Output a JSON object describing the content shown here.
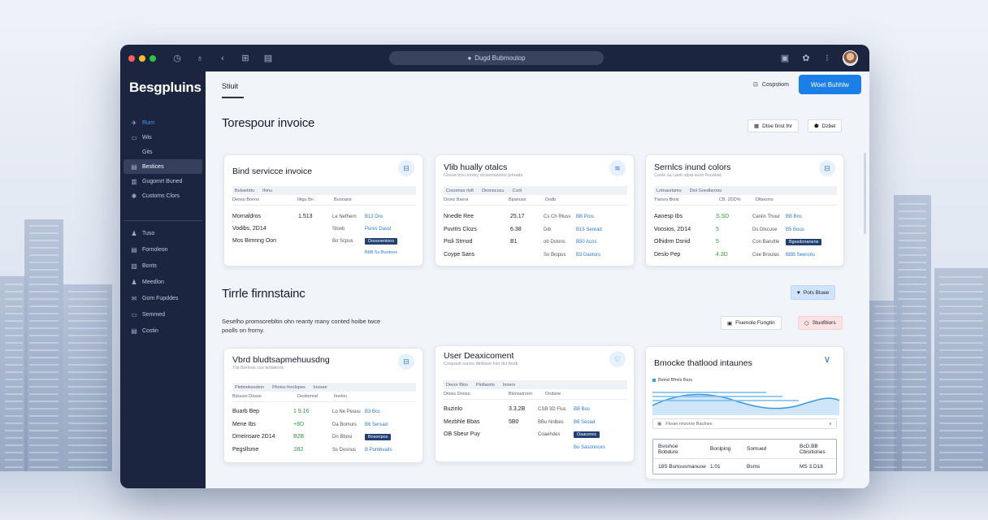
{
  "browser": {
    "url": "Dugd Bubmoutop",
    "traffic_colors": [
      "#ff5f57",
      "#febc2e",
      "#28c840"
    ]
  },
  "sidebar": {
    "brand": "Besgpluins",
    "items": [
      {
        "label": "Rurn",
        "icon": "rocket-icon",
        "active": true
      },
      {
        "label": "Wis",
        "icon": "box-icon"
      },
      {
        "label": "Gits",
        "icon": ""
      },
      {
        "label": "Bestices",
        "icon": "doc-icon",
        "selected": true
      },
      {
        "label": "Gugomrt Buned",
        "icon": "wallet-icon"
      },
      {
        "label": "Customs Clors",
        "icon": "gear-icon"
      },
      {
        "label": "Tuso",
        "icon": "people-icon"
      },
      {
        "label": "Fornoleon",
        "icon": "doc-icon"
      },
      {
        "label": "Bonts",
        "icon": "image-icon"
      },
      {
        "label": "Meedlon",
        "icon": "people-icon"
      },
      {
        "label": "Gom Fupddes",
        "icon": "mail-icon"
      },
      {
        "label": "Semmed",
        "icon": "box-icon"
      },
      {
        "label": "Costin",
        "icon": "doc-icon"
      }
    ]
  },
  "header": {
    "crumb": "Stiuit",
    "ghost_label": "Cospstiom",
    "primary_label": "Woet Buhhlw"
  },
  "section1": {
    "title": "Torespour invoice",
    "chip_a": "Dtoe finst Ihr",
    "chip_b": "Dzbel"
  },
  "section2": {
    "title": "Tirrle firnnstainc",
    "sub": "Seselho promsorebltin ohn reanty many conted hoibe twce poolls on fromy.",
    "chip_top": "Pots Bluee",
    "chip_a": "Fluenole Fungtin",
    "chip_b": "Stuofitiors"
  },
  "cards": [
    {
      "title": "Bind servicce invoice",
      "sub": "",
      "icon": "inbox-icon",
      "thead": [
        "Bulwetirtu",
        "Ihinu"
      ],
      "cols": [
        "Deosu Bonns",
        "Ilitgu Bn",
        "Buooaris"
      ],
      "rows": [
        {
          "name": "Mornaldros",
          "amt": "1.513",
          "green": false,
          "st": "Le Nefhern",
          "lnk": "B13 Dro"
        },
        {
          "name": "Vodibs, 2D14",
          "amt": "",
          "green": false,
          "st": "Stoxb",
          "lnk": "Pures Dassl"
        },
        {
          "name": "Mos Bimnng Oon",
          "amt": "",
          "green": false,
          "st": "Bo Scpus",
          "tag": "Dosonenions"
        }
      ],
      "foot": "B6B Ss Buotoos"
    },
    {
      "title": "Vlib hually otalcs",
      "sub": "Cosoe trou oiomy vlcsentasionz prkoats",
      "icon": "lines-icon",
      "thead": [
        "Cosomsa rloft",
        "Desnocucu",
        "Curit"
      ],
      "cols": [
        "Drosc Bsera",
        "Bpanuss",
        "Dodb"
      ],
      "rows": [
        {
          "name": "Nnedle Ree",
          "amt": "25.17",
          "green": false,
          "st": "Cs Ch Rluss",
          "lnk": "BB Pros"
        },
        {
          "name": "Puvitrs Clozs",
          "amt": "6.38",
          "green": false,
          "st": "Dib",
          "lnk": "B15 Senrad"
        },
        {
          "name": "Pisli Strnod",
          "amt": "B1",
          "green": false,
          "st": "ob Dslons",
          "lnk": "B50 Acos"
        },
        {
          "name": "Coype Sans",
          "amt": "",
          "green": false,
          "st": "So Biopus",
          "lnk": "B3 Daoturs"
        }
      ],
      "foot": ""
    },
    {
      "title": "Sernlcs inund colors",
      "sub": "Conle sa caob sipal soun finuatad",
      "icon": "inbox-icon",
      "thead": [
        "Lotnaurlamu",
        "Diol Goedlaroou"
      ],
      "cols": [
        "Tlarurs Biois",
        "CB. 2DD%",
        "Dlbeoms"
      ],
      "rows": [
        {
          "name": "Aaoesp Ibs",
          "amt": "S.SD",
          "green": true,
          "st": "Canlin Thoul",
          "lnk": "BB Bns"
        },
        {
          "name": "Voosios, 2D14",
          "amt": "5",
          "green": true,
          "st": "Ds Dlxcuse",
          "lnk": "B5 Bous"
        },
        {
          "name": "Olhidrm Dsnid",
          "amt": "5",
          "green": true,
          "st": "Con Baruttle",
          "tag": "Bgssdonanens"
        },
        {
          "name": "Deslo Pep",
          "amt": "4.3D",
          "green": true,
          "st": "Cee Broulas",
          "lnk": "BBB Seerons"
        }
      ],
      "foot": ""
    },
    {
      "title": "Vbrd bludtsapmehuusdng",
      "sub": "Tlis Borlnos cso tiotlalions",
      "icon": "inbox-icon",
      "thead": [
        "Plebnokesdion",
        "Pboiss forolopes",
        "Inooee"
      ],
      "cols": [
        "Bdouso Dosse",
        "Desbonnd",
        "Iloolsn"
      ],
      "rows": [
        {
          "name": "Buarb Bep",
          "amt": "1 9.16",
          "green": true,
          "st": "Lo Ne Pesuu",
          "lnk": "B3 Bcc"
        },
        {
          "name": "Mene Ibs",
          "amt": "+8D",
          "green": true,
          "st": "Da Bomurs",
          "lnk": "B6 Sersad"
        },
        {
          "name": "Dmeinsare 2D14",
          "amt": "B2B",
          "green": true,
          "st": "Dn Bbosi",
          "tag": "Bosonpos"
        },
        {
          "name": "Pegsllsme",
          "amt": "1B2",
          "green": true,
          "st": "Ss Dosnus",
          "lnk": "B Pumbvaits"
        }
      ],
      "foot": ""
    },
    {
      "title": "User Deaxicoment",
      "sub": "Cospauit sunsu dtnbase Inio dct loudi",
      "icon": "heart-icon",
      "thead": [
        "Devor Blos",
        "Plotlaorts",
        "Inoers"
      ],
      "cols": [
        "Dtiosc Dnosu",
        "Blonsstroon",
        "Oodsne"
      ],
      "rows": [
        {
          "name": "Buzinlo",
          "amt": "3.3,2B",
          "green": false,
          "st": "CSB 3D Flus",
          "lnk": "BB Bos"
        },
        {
          "name": "Mezbhle Bbas",
          "amt": "5B0",
          "green": false,
          "st": "BBu Nnlbes",
          "lnk": "B6 Seoad"
        },
        {
          "name": "OB Sbeur Puy",
          "amt": "",
          "green": false,
          "st": "Coaehdes",
          "tag": "Oaaceres"
        },
        {
          "name": "",
          "amt": "",
          "green": false,
          "st": "",
          "lnk": "Bu Sasonnces"
        }
      ],
      "foot": ""
    },
    {
      "title": "Bmocke thatlood intaunes",
      "legend": "Bstnd Bfmls Bars",
      "icon": "chevron-down-icon",
      "filter": "Flouei nnsorze Baulnes",
      "table_head": [
        "Bsruhoe Bobdure",
        "Bonlping",
        "Somued",
        "BcD.BB Cbisitiones"
      ],
      "table_row": [
        "18S Bsrtousmanuoe",
        "1.01",
        "Bsms",
        "MS 3.D18"
      ]
    }
  ],
  "colors": {
    "sidebar_bg": "#1b2540",
    "accent": "#1a7fe8",
    "green": "#2e9e3c",
    "tag_blue": "#1f3f75"
  }
}
